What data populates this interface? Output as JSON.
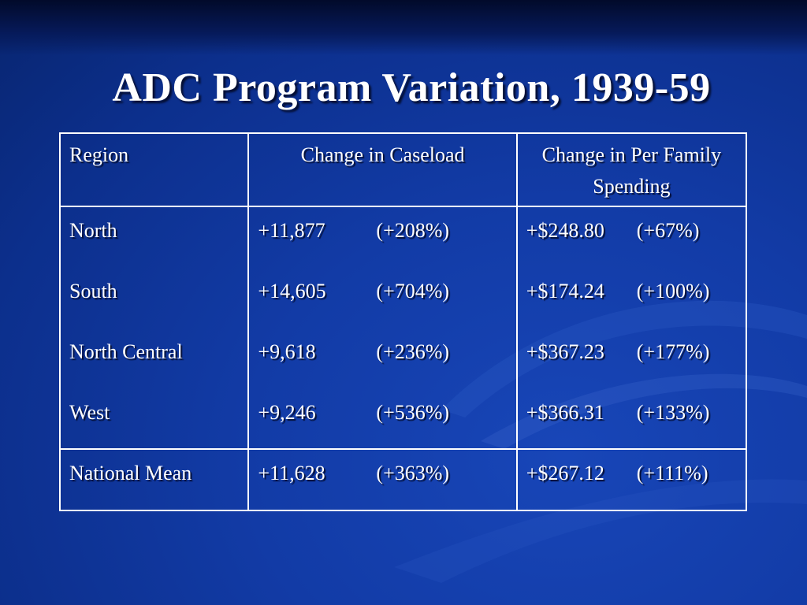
{
  "slide": {
    "title": "ADC Program Variation, 1939-59"
  },
  "table": {
    "headers": [
      "Region",
      "Change in Caseload",
      "Change in Per Family Spending"
    ],
    "rows": [
      {
        "region": "North",
        "caseload": "+11,877",
        "caseload_pct": "(+208%)",
        "spending": "+$248.80",
        "spending_pct": "(+67%)"
      },
      {
        "region": "South",
        "caseload": "+14,605",
        "caseload_pct": "(+704%)",
        "spending": "+$174.24",
        "spending_pct": "(+100%)"
      },
      {
        "region": "North Central",
        "caseload": "+9,618",
        "caseload_pct": "(+236%)",
        "spending": "+$367.23",
        "spending_pct": "(+177%)"
      },
      {
        "region": "West",
        "caseload": "+9,246",
        "caseload_pct": "(+536%)",
        "spending": "+$366.31",
        "spending_pct": "(+133%)"
      }
    ],
    "footer": {
      "region": "National Mean",
      "caseload": "+11,628",
      "caseload_pct": "(+363%)",
      "spending": "+$267.12",
      "spending_pct": "(+111%)"
    }
  },
  "colors": {
    "background": "#123ba6",
    "text": "#ffffff",
    "border": "#ffffff"
  }
}
